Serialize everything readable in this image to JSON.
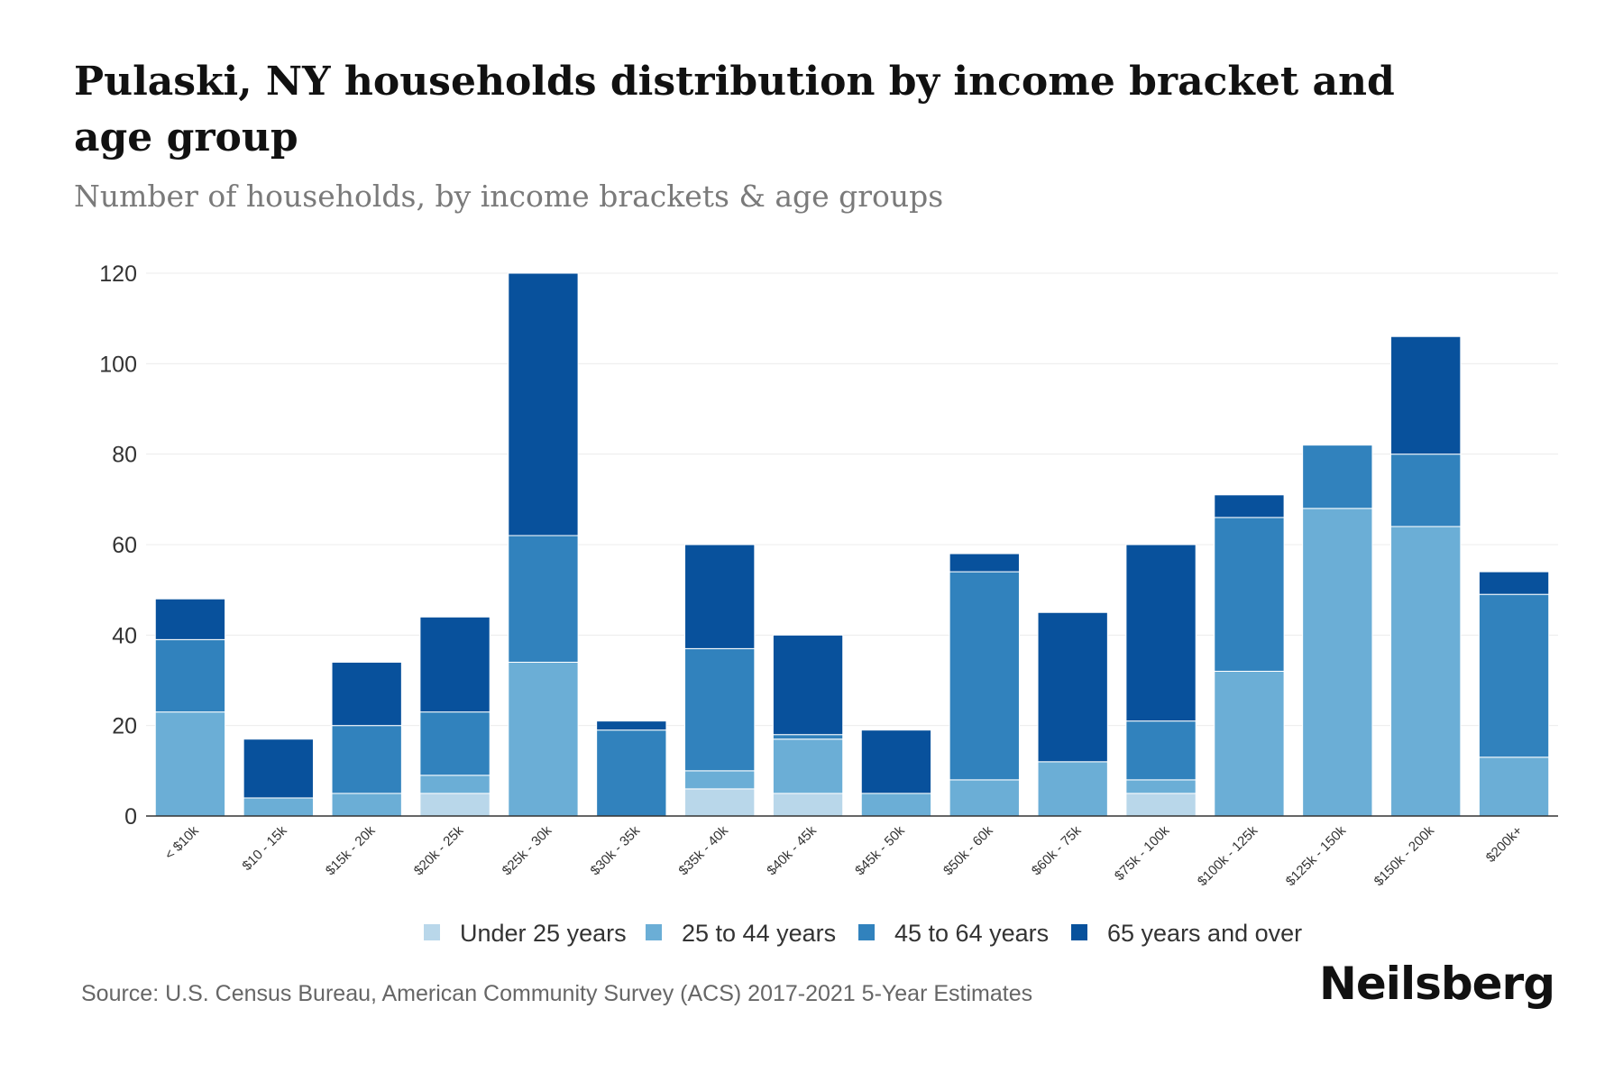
{
  "header": {
    "title": "Pulaski, NY households distribution by income bracket and age group",
    "subtitle": "Number of households, by income brackets & age groups"
  },
  "footer": {
    "source": "Source: U.S. Census Bureau, American Community Survey (ACS) 2017-2021 5-Year Estimates",
    "brand": "Neilsberg"
  },
  "colors": {
    "under25": "#b9d7ea",
    "age25to44": "#6baed6",
    "age45to64": "#3182bd",
    "age65plus": "#08519c",
    "grid": "#ececec",
    "axis": "#333333"
  },
  "chart_data": {
    "type": "bar",
    "stacked": true,
    "title": "Pulaski, NY households distribution by income bracket and age group",
    "subtitle": "Number of households, by income brackets & age groups",
    "xlabel": "",
    "ylabel": "",
    "ylim": [
      0,
      120
    ],
    "yticks": [
      0,
      20,
      40,
      60,
      80,
      100,
      120
    ],
    "grid": true,
    "legend_position": "bottom",
    "categories": [
      "< $10k",
      "$10 - 15k",
      "$15k - 20k",
      "$20k - 25k",
      "$25k - 30k",
      "$30k - 35k",
      "$35k - 40k",
      "$40k - 45k",
      "$45k - 50k",
      "$50k - 60k",
      "$60k - 75k",
      "$75k - 100k",
      "$100k - 125k",
      "$125k - 150k",
      "$150k - 200k",
      "$200k+"
    ],
    "series": [
      {
        "name": "Under 25 years",
        "color": "#b9d7ea",
        "values": [
          0,
          0,
          0,
          5,
          0,
          0,
          6,
          5,
          0,
          0,
          0,
          5,
          0,
          0,
          0,
          0
        ]
      },
      {
        "name": "25 to 44 years",
        "color": "#6baed6",
        "values": [
          23,
          4,
          5,
          4,
          34,
          0,
          4,
          12,
          5,
          8,
          12,
          3,
          32,
          68,
          64,
          13
        ]
      },
      {
        "name": "45 to 64 years",
        "color": "#3182bd",
        "values": [
          16,
          0,
          15,
          14,
          28,
          19,
          27,
          1,
          0,
          46,
          0,
          13,
          34,
          14,
          16,
          36
        ]
      },
      {
        "name": "65 years and over",
        "color": "#08519c",
        "values": [
          9,
          13,
          14,
          21,
          58,
          2,
          23,
          22,
          14,
          4,
          33,
          39,
          5,
          0,
          26,
          5
        ]
      }
    ]
  }
}
